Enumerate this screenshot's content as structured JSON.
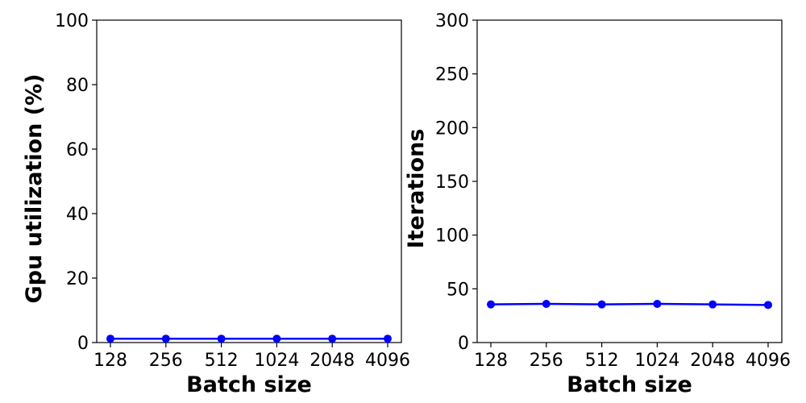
{
  "chart_data": [
    {
      "type": "line",
      "xlabel": "Batch size",
      "ylabel": "Gpu utilization (%)",
      "categories": [
        "128",
        "256",
        "512",
        "1024",
        "2048",
        "4096"
      ],
      "ylim": [
        0,
        100
      ],
      "yticks": [
        0,
        20,
        40,
        60,
        80,
        100
      ],
      "grid": false,
      "series": [
        {
          "color": "#0000ff",
          "marker": "circle",
          "values": [
            1.2,
            1.2,
            1.2,
            1.2,
            1.2,
            1.2
          ]
        }
      ]
    },
    {
      "type": "line",
      "xlabel": "Batch size",
      "ylabel": "Iterations",
      "categories": [
        "128",
        "256",
        "512",
        "1024",
        "2048",
        "4096"
      ],
      "ylim": [
        0,
        300
      ],
      "yticks": [
        0,
        50,
        100,
        150,
        200,
        250,
        300
      ],
      "grid": false,
      "series": [
        {
          "color": "#0000ff",
          "marker": "circle",
          "values": [
            35.5,
            36,
            35.5,
            36,
            35.5,
            35
          ]
        }
      ]
    }
  ]
}
